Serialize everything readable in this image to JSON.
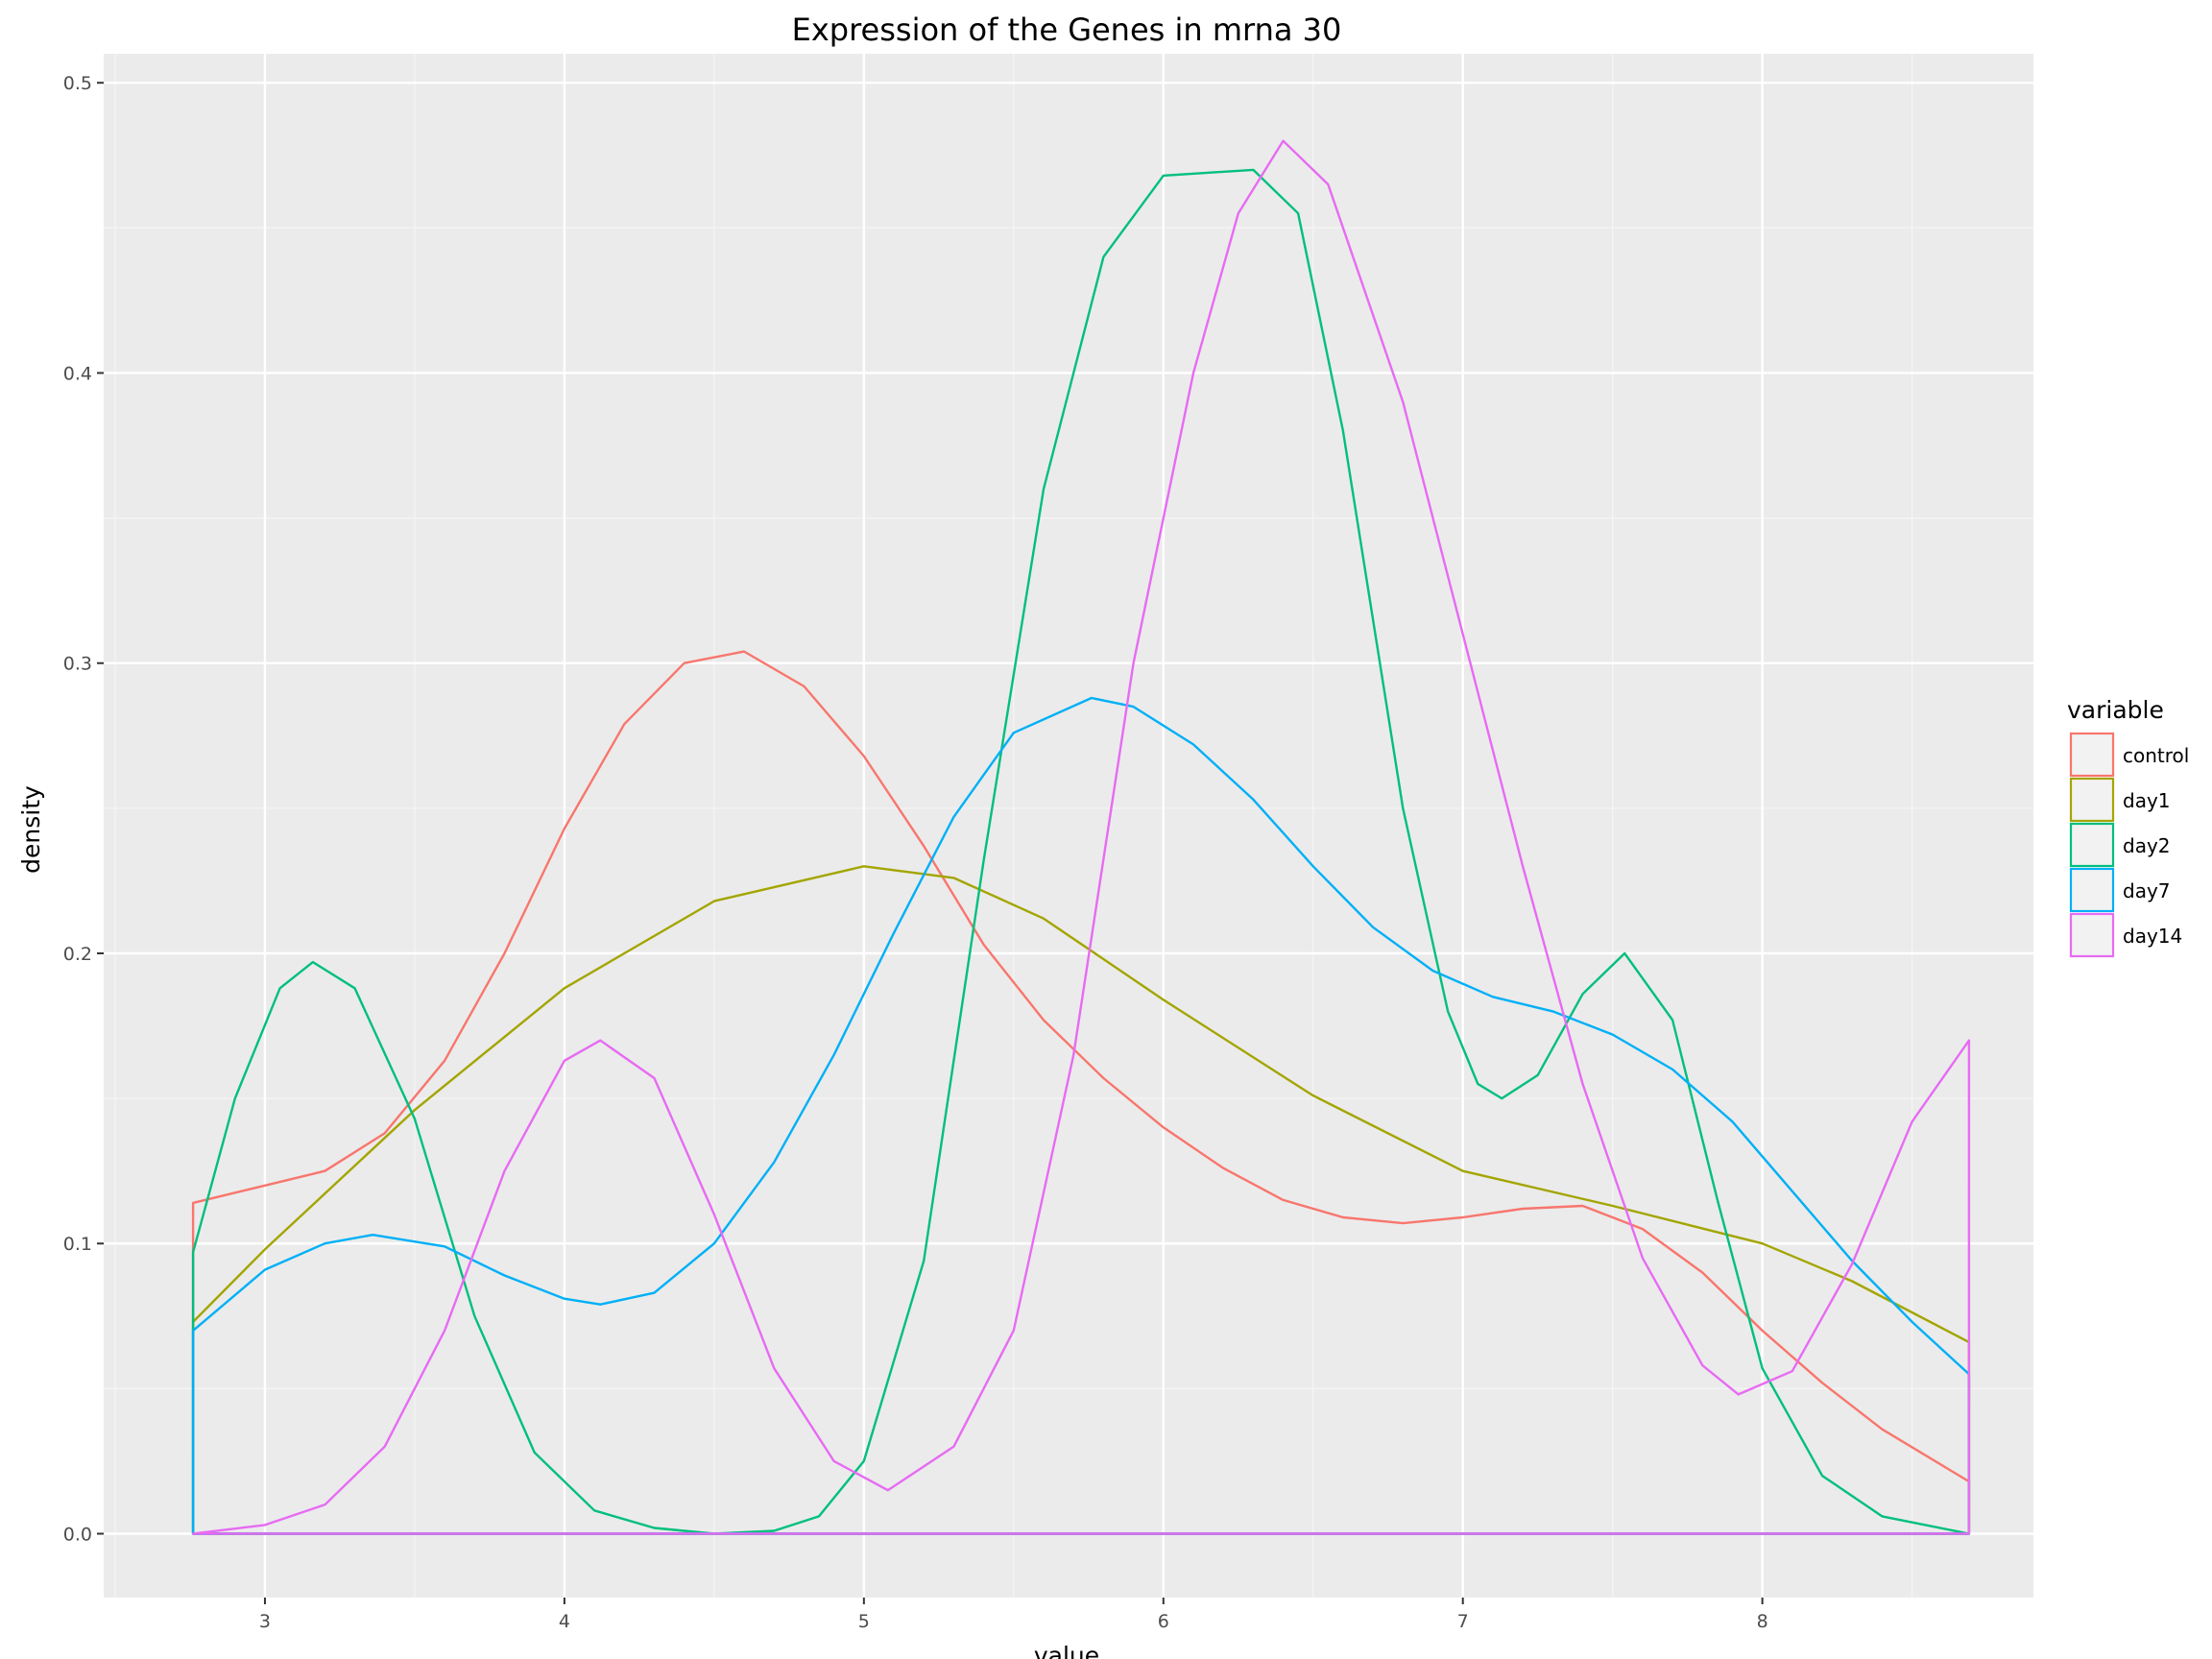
{
  "chart_data": {
    "type": "line",
    "subtype": "density",
    "title": "Expression of the Genes in mrna 30",
    "xlabel": "value",
    "ylabel": "density",
    "xlim": [
      2.5,
      8.7
    ],
    "ylim": [
      0,
      0.5
    ],
    "x_ticks": [
      3,
      4,
      5,
      6,
      7,
      8
    ],
    "y_ticks": [
      0.0,
      0.1,
      0.2,
      0.3,
      0.4,
      0.5
    ],
    "y_tick_labels": [
      "0.0",
      "0.1",
      "0.2",
      "0.3",
      "0.4",
      "0.5"
    ],
    "grid": true,
    "legend": {
      "title": "variable",
      "position": "right"
    },
    "series": [
      {
        "name": "control",
        "color": "#F8766D",
        "points": [
          [
            2.76,
            0.114
          ],
          [
            3.0,
            0.12
          ],
          [
            3.2,
            0.125
          ],
          [
            3.4,
            0.138
          ],
          [
            3.6,
            0.163
          ],
          [
            3.8,
            0.2
          ],
          [
            4.0,
            0.243
          ],
          [
            4.2,
            0.279
          ],
          [
            4.4,
            0.3
          ],
          [
            4.6,
            0.304
          ],
          [
            4.8,
            0.292
          ],
          [
            5.0,
            0.268
          ],
          [
            5.2,
            0.237
          ],
          [
            5.4,
            0.203
          ],
          [
            5.6,
            0.177
          ],
          [
            5.8,
            0.157
          ],
          [
            6.0,
            0.14
          ],
          [
            6.2,
            0.126
          ],
          [
            6.4,
            0.115
          ],
          [
            6.6,
            0.109
          ],
          [
            6.8,
            0.107
          ],
          [
            7.0,
            0.109
          ],
          [
            7.2,
            0.112
          ],
          [
            7.4,
            0.113
          ],
          [
            7.6,
            0.105
          ],
          [
            7.8,
            0.09
          ],
          [
            8.0,
            0.07
          ],
          [
            8.2,
            0.052
          ],
          [
            8.4,
            0.036
          ],
          [
            8.69,
            0.018
          ]
        ]
      },
      {
        "name": "day1",
        "color": "#A3A500",
        "points": [
          [
            2.76,
            0.073
          ],
          [
            3.0,
            0.098
          ],
          [
            3.5,
            0.146
          ],
          [
            4.0,
            0.188
          ],
          [
            4.5,
            0.218
          ],
          [
            5.0,
            0.23
          ],
          [
            5.3,
            0.226
          ],
          [
            5.6,
            0.212
          ],
          [
            6.0,
            0.184
          ],
          [
            6.5,
            0.151
          ],
          [
            7.0,
            0.125
          ],
          [
            7.5,
            0.113
          ],
          [
            8.0,
            0.1
          ],
          [
            8.3,
            0.087
          ],
          [
            8.69,
            0.066
          ]
        ]
      },
      {
        "name": "day2",
        "color": "#00BF7D",
        "points": [
          [
            2.76,
            0.097
          ],
          [
            2.9,
            0.15
          ],
          [
            3.05,
            0.188
          ],
          [
            3.16,
            0.197
          ],
          [
            3.3,
            0.188
          ],
          [
            3.5,
            0.143
          ],
          [
            3.7,
            0.075
          ],
          [
            3.9,
            0.028
          ],
          [
            4.1,
            0.008
          ],
          [
            4.3,
            0.002
          ],
          [
            4.5,
            0.0
          ],
          [
            4.7,
            0.001
          ],
          [
            4.85,
            0.006
          ],
          [
            5.0,
            0.025
          ],
          [
            5.2,
            0.094
          ],
          [
            5.4,
            0.232
          ],
          [
            5.6,
            0.36
          ],
          [
            5.8,
            0.44
          ],
          [
            6.0,
            0.468
          ],
          [
            6.3,
            0.47
          ],
          [
            6.45,
            0.455
          ],
          [
            6.6,
            0.38
          ],
          [
            6.8,
            0.25
          ],
          [
            6.95,
            0.18
          ],
          [
            7.05,
            0.155
          ],
          [
            7.13,
            0.15
          ],
          [
            7.25,
            0.158
          ],
          [
            7.4,
            0.186
          ],
          [
            7.54,
            0.2
          ],
          [
            7.7,
            0.177
          ],
          [
            7.85,
            0.115
          ],
          [
            8.0,
            0.057
          ],
          [
            8.2,
            0.02
          ],
          [
            8.4,
            0.006
          ],
          [
            8.69,
            0.0
          ]
        ]
      },
      {
        "name": "day7",
        "color": "#00B0F6",
        "points": [
          [
            2.76,
            0.07
          ],
          [
            3.0,
            0.091
          ],
          [
            3.2,
            0.1
          ],
          [
            3.36,
            0.103
          ],
          [
            3.6,
            0.099
          ],
          [
            3.8,
            0.089
          ],
          [
            4.0,
            0.081
          ],
          [
            4.12,
            0.079
          ],
          [
            4.3,
            0.083
          ],
          [
            4.5,
            0.1
          ],
          [
            4.7,
            0.128
          ],
          [
            4.9,
            0.165
          ],
          [
            5.1,
            0.207
          ],
          [
            5.3,
            0.247
          ],
          [
            5.5,
            0.276
          ],
          [
            5.76,
            0.288
          ],
          [
            5.9,
            0.285
          ],
          [
            6.1,
            0.272
          ],
          [
            6.3,
            0.253
          ],
          [
            6.5,
            0.23
          ],
          [
            6.7,
            0.209
          ],
          [
            6.9,
            0.194
          ],
          [
            7.1,
            0.185
          ],
          [
            7.3,
            0.18
          ],
          [
            7.5,
            0.172
          ],
          [
            7.7,
            0.16
          ],
          [
            7.9,
            0.142
          ],
          [
            8.1,
            0.118
          ],
          [
            8.3,
            0.094
          ],
          [
            8.5,
            0.073
          ],
          [
            8.69,
            0.055
          ]
        ]
      },
      {
        "name": "day14",
        "color": "#E76BF3",
        "points": [
          [
            2.76,
            0.0
          ],
          [
            3.0,
            0.003
          ],
          [
            3.2,
            0.01
          ],
          [
            3.4,
            0.03
          ],
          [
            3.6,
            0.07
          ],
          [
            3.8,
            0.125
          ],
          [
            4.0,
            0.163
          ],
          [
            4.12,
            0.17
          ],
          [
            4.3,
            0.157
          ],
          [
            4.5,
            0.11
          ],
          [
            4.7,
            0.057
          ],
          [
            4.9,
            0.025
          ],
          [
            5.08,
            0.015
          ],
          [
            5.3,
            0.03
          ],
          [
            5.5,
            0.07
          ],
          [
            5.7,
            0.165
          ],
          [
            5.9,
            0.3
          ],
          [
            6.1,
            0.4
          ],
          [
            6.25,
            0.455
          ],
          [
            6.4,
            0.48
          ],
          [
            6.55,
            0.465
          ],
          [
            6.8,
            0.39
          ],
          [
            7.0,
            0.31
          ],
          [
            7.2,
            0.23
          ],
          [
            7.4,
            0.155
          ],
          [
            7.6,
            0.095
          ],
          [
            7.8,
            0.058
          ],
          [
            7.92,
            0.048
          ],
          [
            8.1,
            0.056
          ],
          [
            8.3,
            0.093
          ],
          [
            8.5,
            0.142
          ],
          [
            8.69,
            0.17
          ]
        ]
      }
    ]
  }
}
